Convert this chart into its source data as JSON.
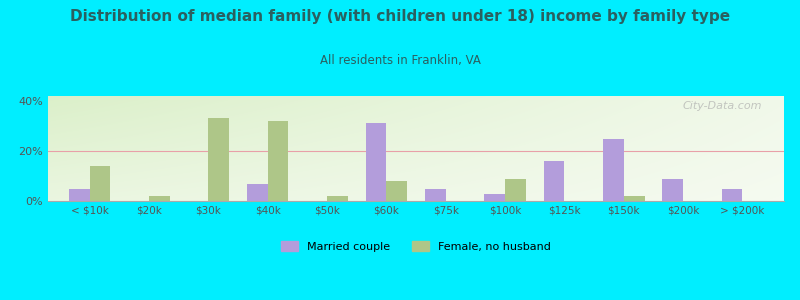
{
  "title": "Distribution of median family (with children under 18) income by family type",
  "subtitle": "All residents in Franklin, VA",
  "categories": [
    "< $10k",
    "$20k",
    "$30k",
    "$40k",
    "$50k",
    "$60k",
    "$75k",
    "$100k",
    "$125k",
    "$150k",
    "$200k",
    "> $200k"
  ],
  "married_couple": [
    5,
    0,
    0,
    7,
    0,
    31,
    5,
    3,
    16,
    25,
    9,
    5
  ],
  "female_no_husband": [
    14,
    2,
    33,
    32,
    2,
    8,
    0,
    9,
    0,
    2,
    0,
    0
  ],
  "married_color": "#b39ddb",
  "female_color": "#aec688",
  "background_outer": "#00eeff",
  "title_color": "#2a6060",
  "subtitle_color": "#2a6060",
  "axis_color": "#555555",
  "grid_color": "#e8a0a8",
  "ylim": [
    0,
    42
  ],
  "yticks": [
    0,
    20,
    40
  ],
  "yticklabels": [
    "0%",
    "20%",
    "40%"
  ],
  "bar_width": 0.35,
  "watermark": "City-Data.com"
}
